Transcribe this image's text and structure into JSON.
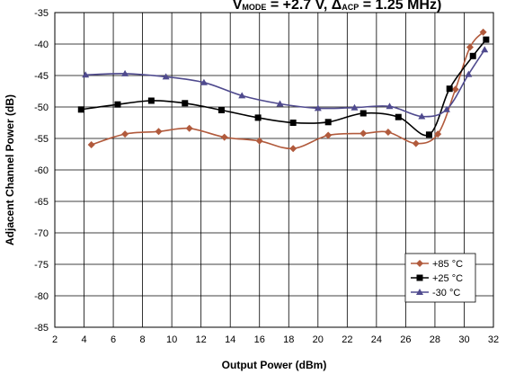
{
  "chart_data": {
    "type": "line",
    "title_parts": {
      "v": "V",
      "v_sub": "MODE",
      "eq": " = +2.7 V, ",
      "delta": "Δ",
      "f_sub": "ACP",
      "rest": " = 1.25 MHz)"
    },
    "xlabel": "Output Power (dBm)",
    "ylabel": "Adjacent Channel Power (dB)",
    "xlim": [
      2,
      32
    ],
    "ylim": [
      -85,
      -35
    ],
    "xticks": [
      2,
      4,
      6,
      8,
      10,
      12,
      14,
      16,
      18,
      20,
      22,
      24,
      26,
      28,
      30,
      32
    ],
    "yticks": [
      -85,
      -80,
      -75,
      -70,
      -65,
      -60,
      -55,
      -50,
      -45,
      -40,
      -35
    ],
    "grid": true,
    "legend_position": "bottom-right",
    "series": [
      {
        "name": "+85 °C",
        "color": "#b15a3c",
        "marker": "diamond",
        "x": [
          4.5,
          6.8,
          9.1,
          11.2,
          13.6,
          16.0,
          18.3,
          20.7,
          23.1,
          24.8,
          26.7,
          28.2,
          29.4,
          30.4,
          31.3
        ],
        "y": [
          -56.0,
          -54.3,
          -53.9,
          -53.4,
          -54.8,
          -55.4,
          -56.6,
          -54.5,
          -54.2,
          -54.0,
          -55.8,
          -54.3,
          -47.2,
          -40.5,
          -38.1
        ]
      },
      {
        "name": "+25 °C",
        "color": "#000000",
        "marker": "square",
        "x": [
          3.8,
          6.3,
          8.6,
          10.9,
          13.4,
          15.9,
          18.3,
          20.7,
          23.1,
          25.5,
          27.6,
          29.0,
          30.6,
          31.5
        ],
        "y": [
          -50.4,
          -49.6,
          -49.0,
          -49.4,
          -50.5,
          -51.7,
          -52.5,
          -52.4,
          -51.0,
          -51.6,
          -54.4,
          -47.1,
          -41.9,
          -39.3
        ]
      },
      {
        "name": "-30 °C",
        "color": "#4f4a8e",
        "marker": "triangle",
        "x": [
          4.1,
          6.8,
          9.6,
          12.2,
          14.8,
          17.4,
          20.0,
          22.5,
          24.9,
          27.1,
          28.8,
          30.3,
          31.4
        ],
        "y": [
          -44.9,
          -44.7,
          -45.2,
          -46.1,
          -48.2,
          -49.5,
          -50.2,
          -50.1,
          -49.9,
          -51.5,
          -50.4,
          -44.8,
          -40.9
        ]
      }
    ]
  }
}
